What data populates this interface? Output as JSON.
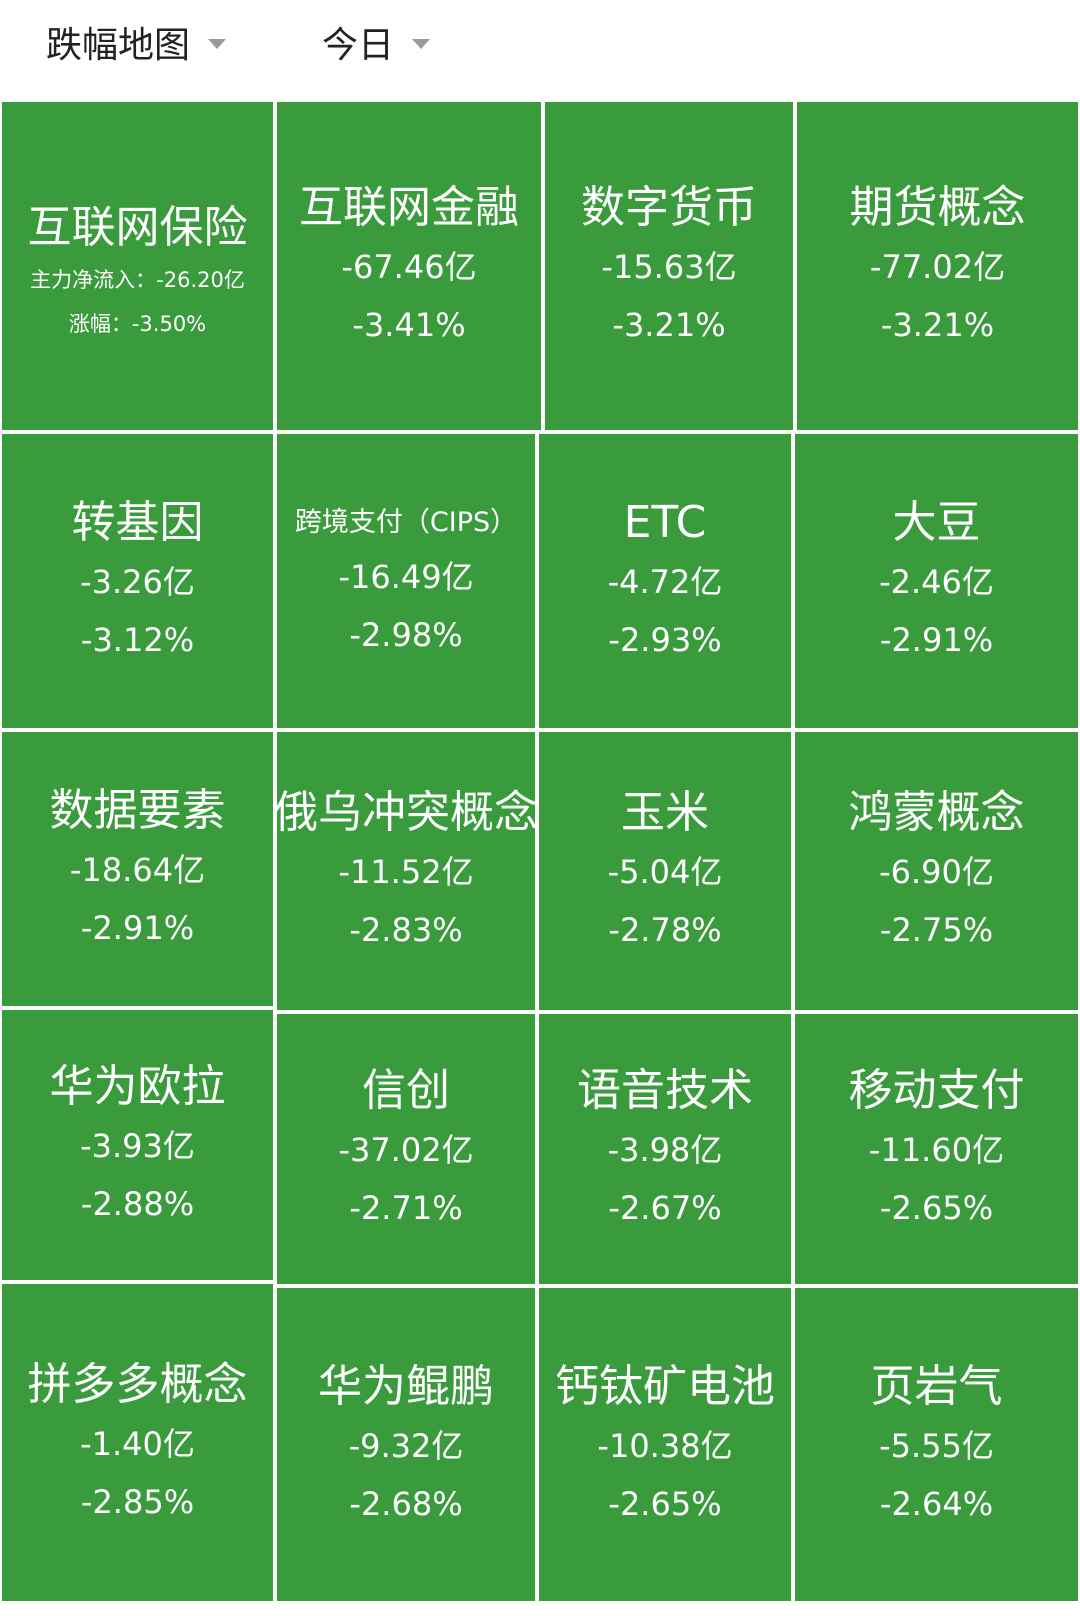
{
  "header": {
    "map_type": "跌幅地图",
    "period": "今日"
  },
  "tiles": [
    {
      "name": "互联网保险",
      "flow_label": "主力净流入：",
      "flow": "-26.20亿",
      "change_label": "涨幅：",
      "change": "-3.50%",
      "detailed": true
    },
    {
      "name": "互联网金融",
      "flow": "-67.46亿",
      "change": "-3.41%"
    },
    {
      "name": "数字货币",
      "flow": "-15.63亿",
      "change": "-3.21%"
    },
    {
      "name": "期货概念",
      "flow": "-77.02亿",
      "change": "-3.21%"
    },
    {
      "name": "转基因",
      "flow": "-3.26亿",
      "change": "-3.12%"
    },
    {
      "name": "跨境支付（CIPS）",
      "flow": "-16.49亿",
      "change": "-2.98%"
    },
    {
      "name": "ETC",
      "flow": "-4.72亿",
      "change": "-2.93%"
    },
    {
      "name": "大豆",
      "flow": "-2.46亿",
      "change": "-2.91%"
    },
    {
      "name": "数据要素",
      "flow": "-18.64亿",
      "change": "-2.91%"
    },
    {
      "name": "俄乌冲突概念",
      "flow": "-11.52亿",
      "change": "-2.83%"
    },
    {
      "name": "玉米",
      "flow": "-5.04亿",
      "change": "-2.78%"
    },
    {
      "name": "鸿蒙概念",
      "flow": "-6.90亿",
      "change": "-2.75%"
    },
    {
      "name": "华为欧拉",
      "flow": "-3.93亿",
      "change": "-2.88%"
    },
    {
      "name": "信创",
      "flow": "-37.02亿",
      "change": "-2.71%"
    },
    {
      "name": "语音技术",
      "flow": "-3.98亿",
      "change": "-2.67%"
    },
    {
      "name": "移动支付",
      "flow": "-11.60亿",
      "change": "-2.65%"
    },
    {
      "name": "拼多多概念",
      "flow": "-1.40亿",
      "change": "-2.85%"
    },
    {
      "name": "华为鲲鹏",
      "flow": "-9.32亿",
      "change": "-2.68%"
    },
    {
      "name": "钙钛矿电池",
      "flow": "-10.38亿",
      "change": "-2.65%"
    },
    {
      "name": "页岩气",
      "flow": "-5.55亿",
      "change": "-2.64%"
    }
  ],
  "colors": {
    "tile_fill": "#3a9b3d",
    "tile_border": "#ffffff",
    "tile_text": "#ffffff"
  }
}
